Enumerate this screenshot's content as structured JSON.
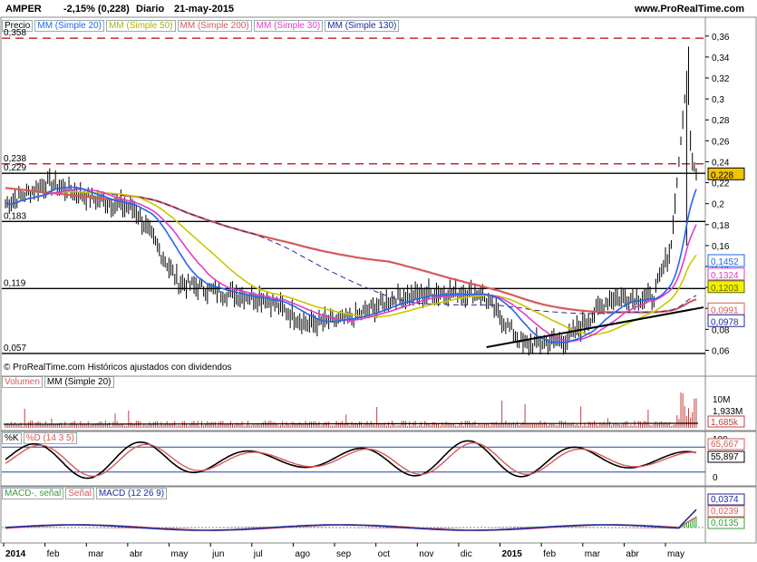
{
  "header": {
    "symbol": "AMPER",
    "change": "-2,15% (0,228)",
    "period": "Diario",
    "date": "21-may-2015",
    "site": "www.ProRealTime.com"
  },
  "price_panel": {
    "legend": [
      "Precio",
      "MM (Simple 20)",
      "MM (Simple 50)",
      "MM (Simple 200)",
      "MM (Simple 30)",
      "MM (Simple 130)"
    ],
    "legend_colors": [
      "#000000",
      "#2266ee",
      "#c8c800",
      "#d65a5a",
      "#e23cc8",
      "#1e2a9a"
    ],
    "left_levels": [
      "0,358",
      "0,238",
      "0,229",
      "0,183",
      "0,119",
      "0,057"
    ],
    "right_ticks": [
      "0,36",
      "0,34",
      "0,32",
      "0,3",
      "0,28",
      "0,26",
      "0,24",
      "0,22",
      "0,2",
      "0,18",
      "0,16",
      "0,14",
      "0,12",
      "0,1",
      "0,08",
      "0,06"
    ],
    "right_tags": [
      {
        "text": "0,228",
        "bg": "#f2c400",
        "fg": "#000"
      },
      {
        "text": "0,1452",
        "bg": "#ffffff",
        "fg": "#2266ee"
      },
      {
        "text": "0,1324",
        "bg": "#ffffff",
        "fg": "#e23cc8"
      },
      {
        "text": "0,1203",
        "bg": "#f2f200",
        "fg": "#666600"
      },
      {
        "text": "0,0991",
        "bg": "#ffffff",
        "fg": "#d65a5a"
      },
      {
        "text": "0,0978",
        "bg": "#ffffff",
        "fg": "#1e2a9a"
      }
    ],
    "footer": "© ProRealTime.com  Históricos ajustados con dividendos"
  },
  "volume_panel": {
    "legend": [
      "Volumen",
      "MM (Simple 20)"
    ],
    "ticks": [
      "10M",
      "1,933M"
    ],
    "tag": "1,685k"
  },
  "stoch_panel": {
    "legend": [
      "%K",
      "%D (14 3 5)"
    ],
    "ticks": [
      "100",
      "50",
      "0"
    ],
    "tags": [
      "65,667",
      "55,897"
    ]
  },
  "macd_panel": {
    "legend": [
      "MACD-, señal",
      "Señal",
      "MACD (12 26 9)"
    ],
    "tags": [
      "0,0374",
      "0,0239",
      "0,0135"
    ]
  },
  "x_axis": {
    "labels": [
      "2014",
      "feb",
      "mar",
      "abr",
      "may",
      "jun",
      "jul",
      "ago",
      "sep",
      "oct",
      "nov",
      "dic",
      "2015",
      "feb",
      "mar",
      "abr",
      "may"
    ]
  },
  "chart_data": {
    "type": "line",
    "title": "AMPER",
    "xlabel": "",
    "ylabel": "",
    "ylim": [
      0.05,
      0.365
    ],
    "x": [
      "2014-01",
      "2014-02",
      "2014-03",
      "2014-04",
      "2014-05",
      "2014-06",
      "2014-07",
      "2014-08",
      "2014-09",
      "2014-10",
      "2014-11",
      "2014-12",
      "2015-01",
      "2015-02",
      "2015-03",
      "2015-04",
      "2015-05"
    ],
    "series": [
      {
        "name": "Precio",
        "values": [
          0.2,
          0.22,
          0.205,
          0.195,
          0.125,
          0.115,
          0.11,
          0.085,
          0.09,
          0.11,
          0.115,
          0.115,
          0.065,
          0.07,
          0.11,
          0.11,
          0.228
        ]
      },
      {
        "name": "MM (Simple 200)",
        "values": [
          0.22,
          0.21,
          0.205,
          0.195,
          0.185,
          0.17,
          0.16,
          0.15,
          0.14,
          0.132,
          0.125,
          0.118,
          0.11,
          0.1,
          0.095,
          0.094,
          0.0991
        ]
      }
    ],
    "horizontal_levels": [
      0.358,
      0.238,
      0.229,
      0.183,
      0.119,
      0.057
    ]
  }
}
